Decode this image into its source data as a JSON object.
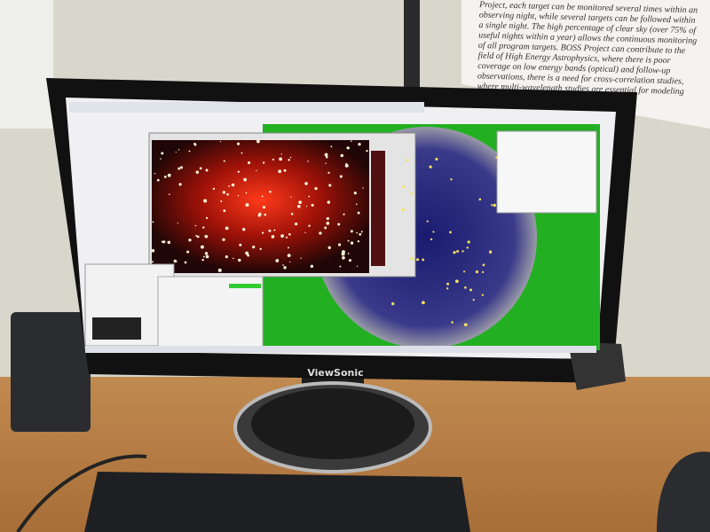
{
  "poster": {
    "lines": [
      "Project, each target can be monitored several times within an",
      "observing night, while several targets can be followed within",
      "a single night. The high percentage of clear sky (over 75% of",
      "useful nights within a year) allows the continuous monitoring",
      "of all program targets. BOSS Project can contribute to the",
      "field of High Energy Astrophysics, where there is poor",
      "coverage on low energy bands (optical) and follow-up",
      "observations, there is a need for cross-correlation studies,",
      "where multi-wavelength studies are essential for modeling"
    ]
  },
  "monitor": {
    "brand": "ViewSonic"
  }
}
